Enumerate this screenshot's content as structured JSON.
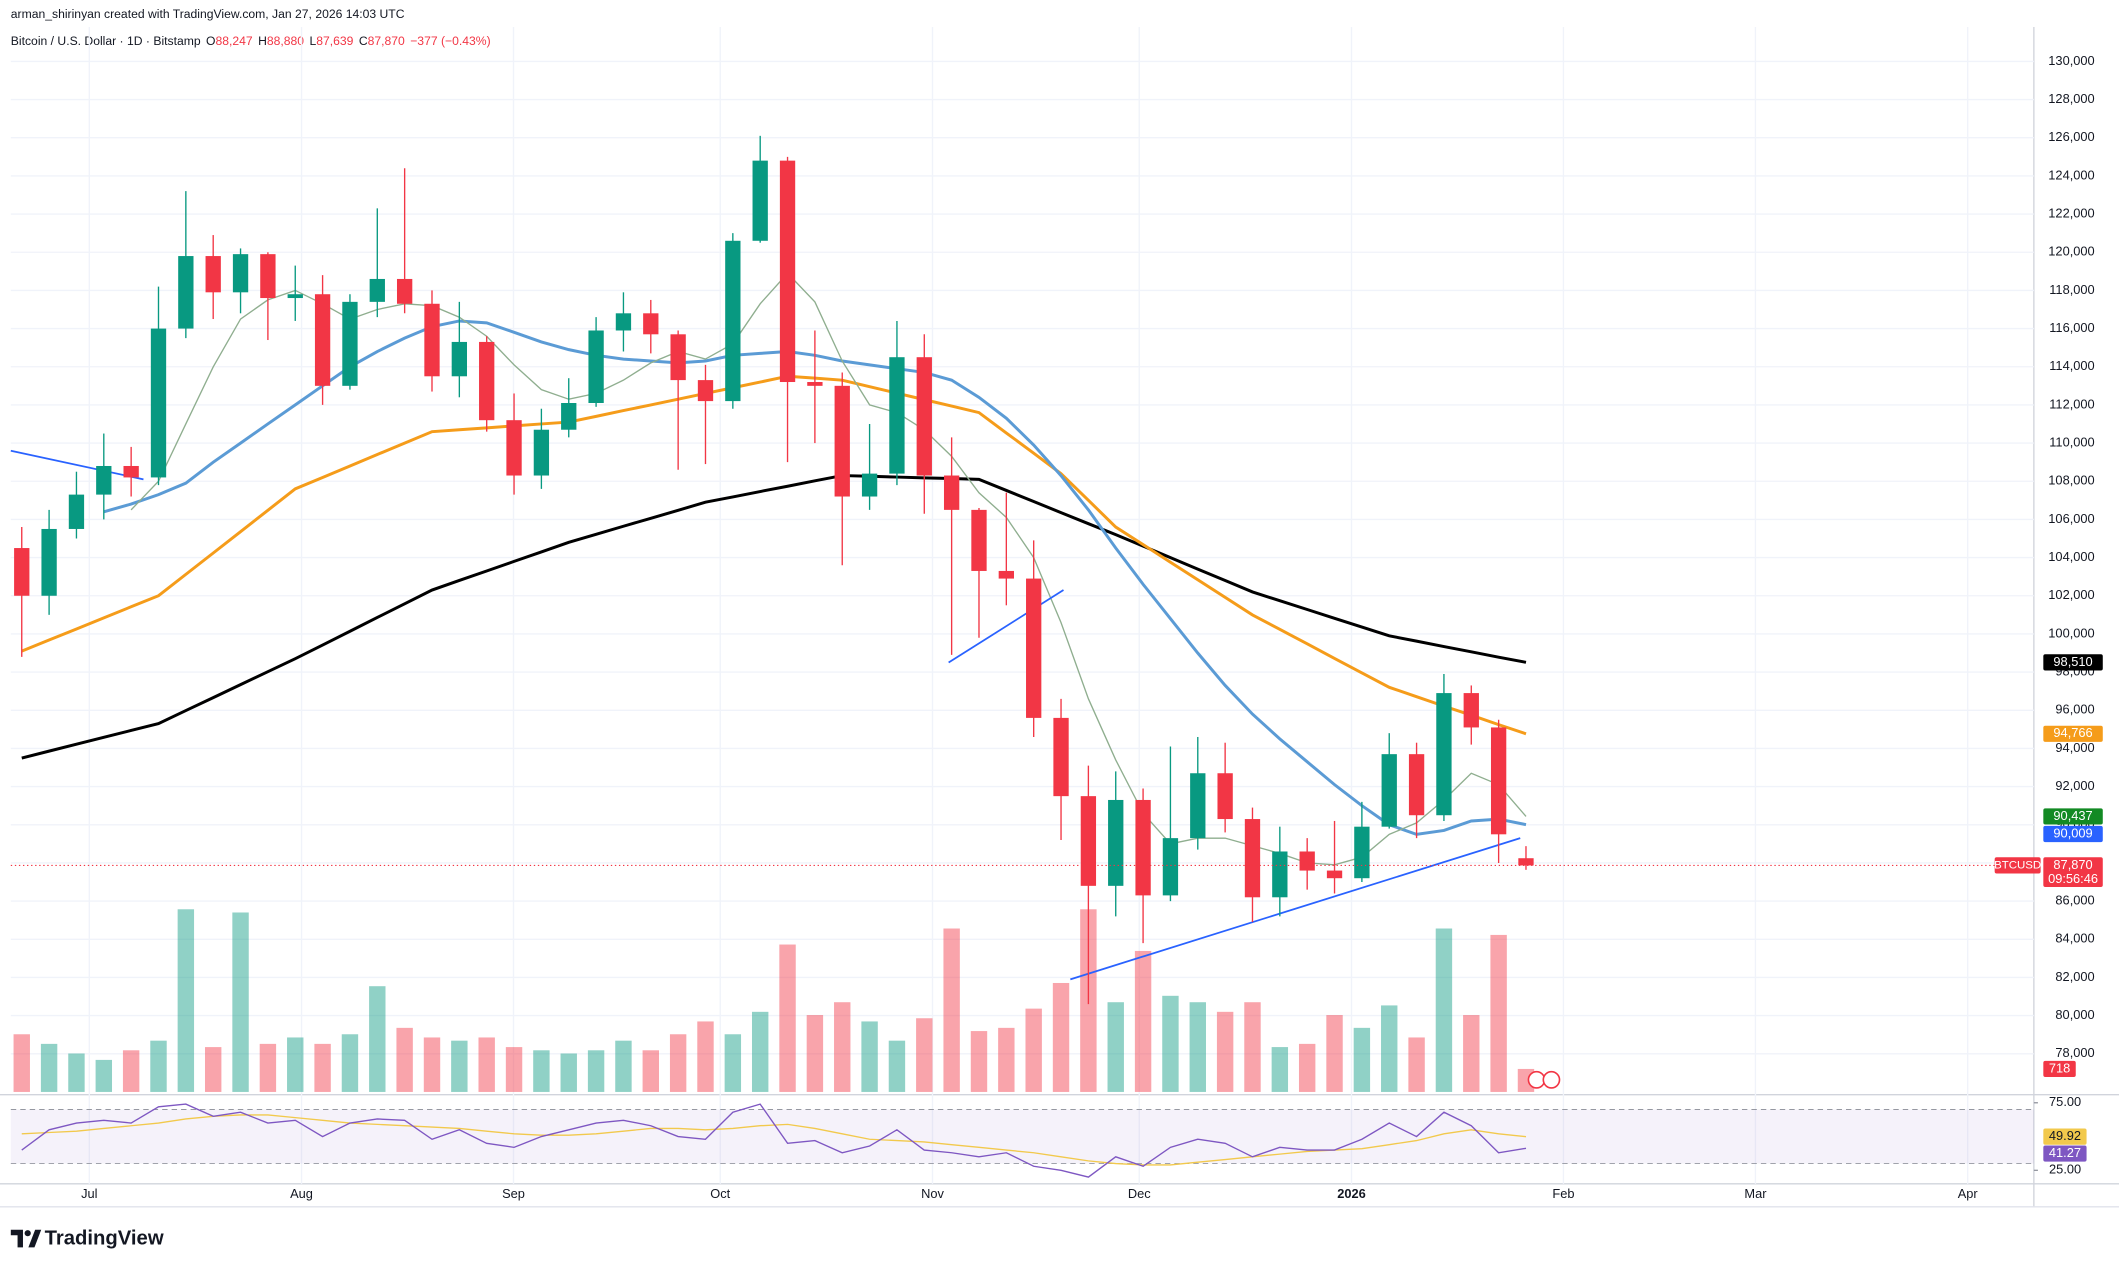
{
  "header": {
    "credit": "arman_shirinyan created with TradingView.com, Jan 27, 2026 14:03 UTC",
    "symbol": "Bitcoin / U.S. Dollar · 1D · Bitstamp",
    "ohlc": [
      {
        "key": "O",
        "value": "88,247"
      },
      {
        "key": "H",
        "value": "88,880"
      },
      {
        "key": "L",
        "value": "87,639"
      },
      {
        "key": "C",
        "value": "87,870"
      }
    ],
    "change": "−377 (−0.43%)"
  },
  "chart_data": {
    "type": "candlestick",
    "up_color": "#089981",
    "down_color": "#f23645",
    "open": [
      104500,
      102000,
      105500,
      107300,
      108800,
      108200,
      116000,
      119800,
      117900,
      119900,
      117600,
      117800,
      113000,
      117400,
      118600,
      117300,
      113500,
      115300,
      111200,
      108300,
      110700,
      112100,
      115900,
      116800,
      115700,
      113300,
      112200,
      120600,
      124800,
      113200,
      113000,
      107200,
      108400,
      114500,
      108300,
      106500,
      103300,
      102900,
      95600,
      91500,
      86800,
      91300,
      86300,
      89300,
      92700,
      90300,
      86200,
      88600,
      87600,
      87200,
      89900,
      93700,
      90500,
      96900,
      95100,
      88247
    ],
    "high": [
      105600,
      106500,
      108500,
      110500,
      109800,
      118200,
      123200,
      120900,
      120200,
      120000,
      119300,
      118800,
      117800,
      122300,
      124400,
      118000,
      117400,
      115600,
      112600,
      111800,
      113400,
      116600,
      117900,
      117500,
      115900,
      114100,
      121000,
      126100,
      125000,
      115900,
      113700,
      111000,
      116400,
      115700,
      110300,
      106600,
      107400,
      104900,
      96600,
      93100,
      92800,
      91900,
      94100,
      94600,
      94300,
      90900,
      89900,
      89300,
      90200,
      91200,
      94800,
      94300,
      97900,
      97300,
      95500,
      88880
    ],
    "low": [
      98800,
      101000,
      105000,
      106000,
      107200,
      107800,
      115500,
      116500,
      116800,
      115400,
      116400,
      112000,
      112800,
      116600,
      116800,
      112700,
      112400,
      110600,
      107300,
      107600,
      110300,
      111900,
      114800,
      114700,
      108600,
      108900,
      111800,
      120500,
      109000,
      110000,
      103600,
      106500,
      107800,
      106300,
      98900,
      99800,
      101500,
      94600,
      89200,
      80600,
      85200,
      83800,
      86000,
      88700,
      89600,
      84900,
      85200,
      86600,
      86400,
      87000,
      89800,
      89300,
      90200,
      94200,
      88000,
      87639
    ],
    "close": [
      102000,
      105500,
      107300,
      108800,
      108200,
      116000,
      119800,
      117900,
      119900,
      117600,
      117800,
      113000,
      117400,
      118600,
      117300,
      113500,
      115300,
      111200,
      108300,
      110700,
      112100,
      115900,
      116800,
      115700,
      113300,
      112200,
      120600,
      124800,
      113200,
      113000,
      107200,
      108400,
      114500,
      108300,
      106500,
      103300,
      102900,
      95600,
      91500,
      86800,
      91300,
      86300,
      89300,
      92700,
      90300,
      86200,
      88600,
      87600,
      87200,
      89900,
      93700,
      90500,
      96900,
      95100,
      89500,
      87870
    ],
    "last_price_label": "87,870",
    "countdown": "09:56:46",
    "symbol_tag": "BTCUSD",
    "xlim": [
      -0.4,
      73.57
    ],
    "xticks": [
      {
        "value": 2.47,
        "label": "Jul"
      },
      {
        "value": 10.23,
        "label": "Aug"
      },
      {
        "value": 17.98,
        "label": "Sep"
      },
      {
        "value": 25.54,
        "label": "Oct"
      },
      {
        "value": 33.3,
        "label": "Nov"
      },
      {
        "value": 40.86,
        "label": "Dec"
      },
      {
        "value": 48.62,
        "label": "2026"
      },
      {
        "value": 56.37,
        "label": "Feb"
      },
      {
        "value": 63.39,
        "label": "Mar"
      },
      {
        "value": 71.15,
        "label": "Apr"
      }
    ],
    "ylim": [
      76000,
      131800
    ],
    "yticks": [
      {
        "value": 78000,
        "label": "78,000"
      },
      {
        "value": 80000,
        "label": "80,000"
      },
      {
        "value": 82000,
        "label": "82,000"
      },
      {
        "value": 84000,
        "label": "84,000"
      },
      {
        "value": 86000,
        "label": "86,000"
      },
      {
        "value": 88000,
        "label": "88,000"
      },
      {
        "value": 90000,
        "label": "90,000"
      },
      {
        "value": 92000,
        "label": "92,000"
      },
      {
        "value": 94000,
        "label": "94,000"
      },
      {
        "value": 96000,
        "label": "96,000"
      },
      {
        "value": 98000,
        "label": "98,000"
      },
      {
        "value": 100000,
        "label": "100,000"
      },
      {
        "value": 102000,
        "label": "102,000"
      },
      {
        "value": 104000,
        "label": "104,000"
      },
      {
        "value": 106000,
        "label": "106,000"
      },
      {
        "value": 108000,
        "label": "108,000"
      },
      {
        "value": 110000,
        "label": "110,000"
      },
      {
        "value": 112000,
        "label": "112,000"
      },
      {
        "value": 114000,
        "label": "114,000"
      },
      {
        "value": 116000,
        "label": "116,000"
      },
      {
        "value": 118000,
        "label": "118,000"
      },
      {
        "value": 120000,
        "label": "120,000"
      },
      {
        "value": 122000,
        "label": "122,000"
      },
      {
        "value": 124000,
        "label": "124,000"
      },
      {
        "value": 126000,
        "label": "126,000"
      },
      {
        "value": 128000,
        "label": "128,000"
      },
      {
        "value": 130000,
        "label": "130,000"
      }
    ],
    "grid": true,
    "moving_averages": [
      {
        "color": "#000000",
        "label_color": "#000000",
        "width": 2.2,
        "price_label": "98,510",
        "values": [
          93500,
          93860,
          94220,
          94580,
          94940,
          95300,
          95980,
          96660,
          97340,
          98020,
          98700,
          99420,
          100140,
          100860,
          101580,
          102300,
          102800,
          103300,
          103800,
          104300,
          104800,
          105220,
          105640,
          106060,
          106480,
          106900,
          107180,
          107460,
          107740,
          108020,
          108300,
          108260,
          108220,
          108180,
          108140,
          108100,
          107520,
          106940,
          106360,
          105780,
          105200,
          104600,
          104000,
          103400,
          102800,
          102200,
          101740,
          101280,
          100820,
          100360,
          99900,
          99620,
          99340,
          99060,
          98780,
          98510
        ]
      },
      {
        "color": "#f59c1a",
        "label_color": "#f59c1a",
        "width": 2.2,
        "price_label": "94,766",
        "values": [
          99100,
          99680,
          100260,
          100840,
          101420,
          102000,
          103120,
          104240,
          105360,
          106480,
          107600,
          108200,
          108800,
          109400,
          110000,
          110600,
          110700,
          110800,
          110900,
          111000,
          111100,
          111400,
          111700,
          112000,
          112300,
          112600,
          112900,
          113200,
          113500,
          113400,
          113300,
          112960,
          112620,
          112280,
          111940,
          111600,
          110530,
          109470,
          108400,
          107000,
          105600,
          104680,
          103760,
          102840,
          101920,
          101000,
          100240,
          99480,
          98720,
          97960,
          97200,
          96710,
          96220,
          95740,
          95250,
          94766
        ]
      },
      {
        "color": "#5b9bd5",
        "label_color": "#2962ff",
        "width": 2.2,
        "price_label": "90,009",
        "values": [
          null,
          null,
          null,
          106400,
          106800,
          107300,
          107900,
          109000,
          110000,
          111000,
          112000,
          113000,
          114000,
          114800,
          115500,
          116100,
          116400,
          116300,
          115800,
          115300,
          114900,
          114600,
          114400,
          114300,
          114200,
          114300,
          114600,
          114700,
          114800,
          114600,
          114300,
          114100,
          113900,
          113700,
          113300,
          112400,
          111300,
          109900,
          108300,
          106500,
          104500,
          102600,
          100800,
          99000,
          97300,
          95800,
          94500,
          93300,
          92100,
          91000,
          90000,
          89500,
          89700,
          90200,
          90300,
          90009
        ]
      },
      {
        "color": "#8fae8f",
        "label_color": "#138a24",
        "width": 1,
        "price_label": "90,437",
        "values": [
          null,
          null,
          null,
          null,
          106500,
          108000,
          111000,
          114000,
          116500,
          117500,
          118000,
          117300,
          116500,
          117000,
          117300,
          117200,
          116600,
          115600,
          114100,
          112800,
          112300,
          112600,
          113300,
          114200,
          114800,
          114400,
          115200,
          117300,
          118900,
          117400,
          114300,
          112000,
          111600,
          110700,
          109300,
          107400,
          106100,
          104000,
          100600,
          96600,
          93400,
          90600,
          89000,
          89300,
          89300,
          88900,
          88500,
          88000,
          87900,
          88300,
          89500,
          90100,
          91300,
          92700,
          92100,
          90437
        ]
      }
    ],
    "trendlines": {
      "color": "#2962ff",
      "lines": [
        {
          "x": [
            -0.4,
            4.45
          ],
          "y": [
            109600,
            108100
          ]
        },
        {
          "x": [
            33.89,
            38.09
          ],
          "y": [
            98500,
            102300
          ]
        },
        {
          "x": [
            38.34,
            54.79
          ],
          "y": [
            81900,
            89300
          ]
        }
      ]
    },
    "volume": {
      "ylim": [
        0,
        14000
      ],
      "last_label": "718",
      "values": [
        1800,
        1500,
        1200,
        1000,
        1300,
        1600,
        5700,
        1400,
        5600,
        1500,
        1700,
        1500,
        1800,
        3300,
        2000,
        1700,
        1600,
        1700,
        1400,
        1300,
        1200,
        1300,
        1600,
        1300,
        1800,
        2200,
        1800,
        2500,
        4600,
        2400,
        2800,
        2200,
        1600,
        2300,
        5100,
        1900,
        2000,
        2600,
        3400,
        5700,
        2800,
        4400,
        3000,
        2800,
        2500,
        2800,
        1400,
        1500,
        2400,
        2000,
        2700,
        1700,
        5100,
        2400,
        4900,
        718
      ]
    },
    "rsi": {
      "color": "#7e57c2",
      "ma_color": "#f2c94c",
      "ylim": [
        16,
        79
      ],
      "yticks": [
        {
          "value": 75,
          "label": "75.00"
        },
        {
          "value": 25,
          "label": "25.00"
        }
      ],
      "bands": [
        30,
        70
      ],
      "last_label": "41.27",
      "ma_last_label": "49.92",
      "values": [
        40,
        55,
        60,
        62,
        60,
        72,
        74,
        65,
        68,
        60,
        62,
        50,
        60,
        63,
        62,
        48,
        55,
        45,
        42,
        50,
        55,
        60,
        62,
        58,
        50,
        48,
        68,
        74,
        45,
        47,
        38,
        43,
        55,
        40,
        38,
        35,
        38,
        28,
        25,
        20,
        35,
        28,
        42,
        48,
        45,
        35,
        42,
        40,
        40,
        48,
        60,
        50,
        68,
        58,
        38,
        41.27
      ],
      "ma_values": [
        52,
        53,
        54,
        56,
        58,
        60,
        63,
        65,
        66,
        66,
        64,
        62,
        60,
        59,
        58,
        57,
        56,
        54,
        52,
        51,
        51,
        52,
        54,
        56,
        56,
        55,
        56,
        58,
        59,
        56,
        52,
        48,
        47,
        46,
        44,
        42,
        40,
        38,
        35,
        32,
        30,
        29,
        29,
        31,
        33,
        35,
        37,
        39,
        40,
        41,
        44,
        47,
        52,
        55,
        52,
        49.92
      ]
    }
  },
  "footer": {
    "brand": "TradingView"
  }
}
